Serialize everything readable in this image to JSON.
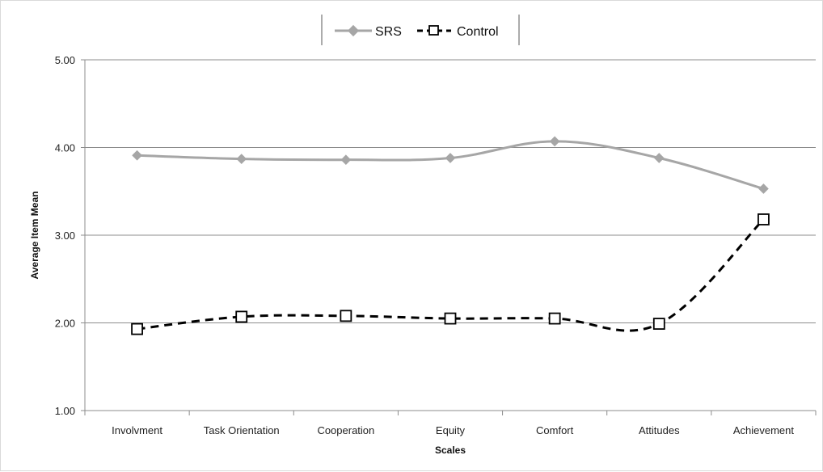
{
  "chart_data": {
    "type": "line",
    "categories": [
      "Involvment",
      "Task Orientation",
      "Cooperation",
      "Equity",
      "Comfort",
      "Attitudes",
      "Achievement"
    ],
    "series": [
      {
        "name": "SRS",
        "values": [
          3.91,
          3.87,
          3.86,
          3.88,
          4.07,
          3.88,
          3.53
        ],
        "color": "#a6a6a6",
        "marker": "diamond",
        "line": "solid"
      },
      {
        "name": "Control",
        "values": [
          1.93,
          2.07,
          2.08,
          2.05,
          2.05,
          1.99,
          3.18
        ],
        "color": "#000000",
        "marker": "square",
        "line": "dashed"
      }
    ],
    "xlabel": "Scales",
    "ylabel": "Average Item Mean",
    "ylim": [
      1.0,
      5.0
    ],
    "yticks": [
      "1.00",
      "2.00",
      "3.00",
      "4.00",
      "5.00"
    ],
    "grid": "horizontal",
    "legend_position": "top-center"
  }
}
